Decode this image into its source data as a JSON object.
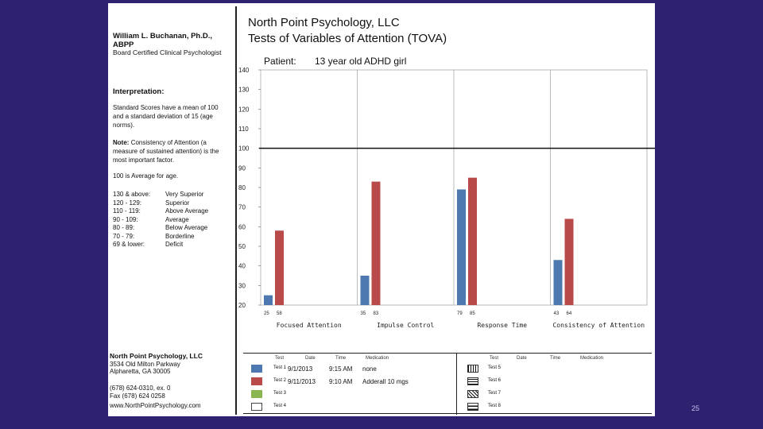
{
  "doctor": {
    "name": "William L. Buchanan, Ph.D., ABPP",
    "certification": "Board Certified Clinical Psychologist"
  },
  "interpretation": {
    "heading": "Interpretation:",
    "standard_scores": "Standard Scores have a mean of 100 and a standard deviation of 15 (age norms).",
    "note_label": "Note:",
    "note_text": "Consistency of Attention (a measure of sustained attention) is the most important factor.",
    "average_line": "100   is   Average   for age.",
    "ranges": [
      {
        "range": "130 & above:",
        "label": "Very Superior"
      },
      {
        "range": "120 - 129:",
        "label": "Superior"
      },
      {
        "range": "110 - 119:",
        "label": "Above Average"
      },
      {
        "range": "90 - 109:",
        "label": "Average"
      },
      {
        "range": "80 - 89:",
        "label": "Below Average"
      },
      {
        "range": "70 - 79:",
        "label": "Borderline"
      },
      {
        "range": "69 & lower:",
        "label": "Deficit"
      }
    ]
  },
  "company": {
    "name": "North Point Psychology, LLC",
    "address1": "3534 Old Milton Parkway",
    "address2": "Alpharetta, GA 30005",
    "phone": "(678) 624-0310, ex. 0",
    "fax": "Fax (678) 624 0258",
    "website": "www.NorthPointPsychology.com"
  },
  "report": {
    "title": "North Point Psychology, LLC",
    "subtitle": "Tests of Variables of Attention (TOVA)",
    "patient_label": "Patient:",
    "patient_value": "13 year old ADHD girl"
  },
  "chart_data": {
    "type": "bar",
    "ylim": [
      20,
      140
    ],
    "yticks": [
      20,
      30,
      40,
      50,
      60,
      70,
      80,
      90,
      100,
      110,
      120,
      130,
      140
    ],
    "reference_line": 100,
    "categories": [
      "Focused Attention",
      "Impulse Control",
      "Response Time",
      "Consistency of Attention"
    ],
    "value_labels": [
      [
        "25",
        "58"
      ],
      [
        "35",
        "83"
      ],
      [
        "79",
        "85"
      ],
      [
        "43",
        "64"
      ]
    ],
    "series": [
      {
        "name": "Test 1",
        "color": "#4e79b0",
        "values": [
          25,
          35,
          79,
          43
        ]
      },
      {
        "name": "Test 2",
        "color": "#b84a4a",
        "values": [
          58,
          83,
          85,
          64
        ]
      }
    ]
  },
  "legend": {
    "headers": [
      "Test",
      "Date",
      "Time",
      "Medication"
    ],
    "headers_right": [
      "Test",
      "Date",
      "Time",
      "Medication"
    ],
    "rows": [
      {
        "test": "Test 1",
        "date": "9/1/2013",
        "time": "9:15 AM",
        "medication": "none",
        "color": "#4e79b0"
      },
      {
        "test": "Test 2",
        "date": "9/11/2013",
        "time": "9:10 AM",
        "medication": "Adderall 10 mgs",
        "color": "#b84a4a"
      },
      {
        "test": "Test 3",
        "date": "",
        "time": "",
        "medication": "",
        "color": "#8bb64f"
      },
      {
        "test": "Test 4",
        "date": "",
        "time": "",
        "medication": "",
        "color": "#ffffff"
      }
    ],
    "rows_right": [
      "Test 5",
      "Test 6",
      "Test 7",
      "Test 8"
    ]
  },
  "page_number": "25"
}
